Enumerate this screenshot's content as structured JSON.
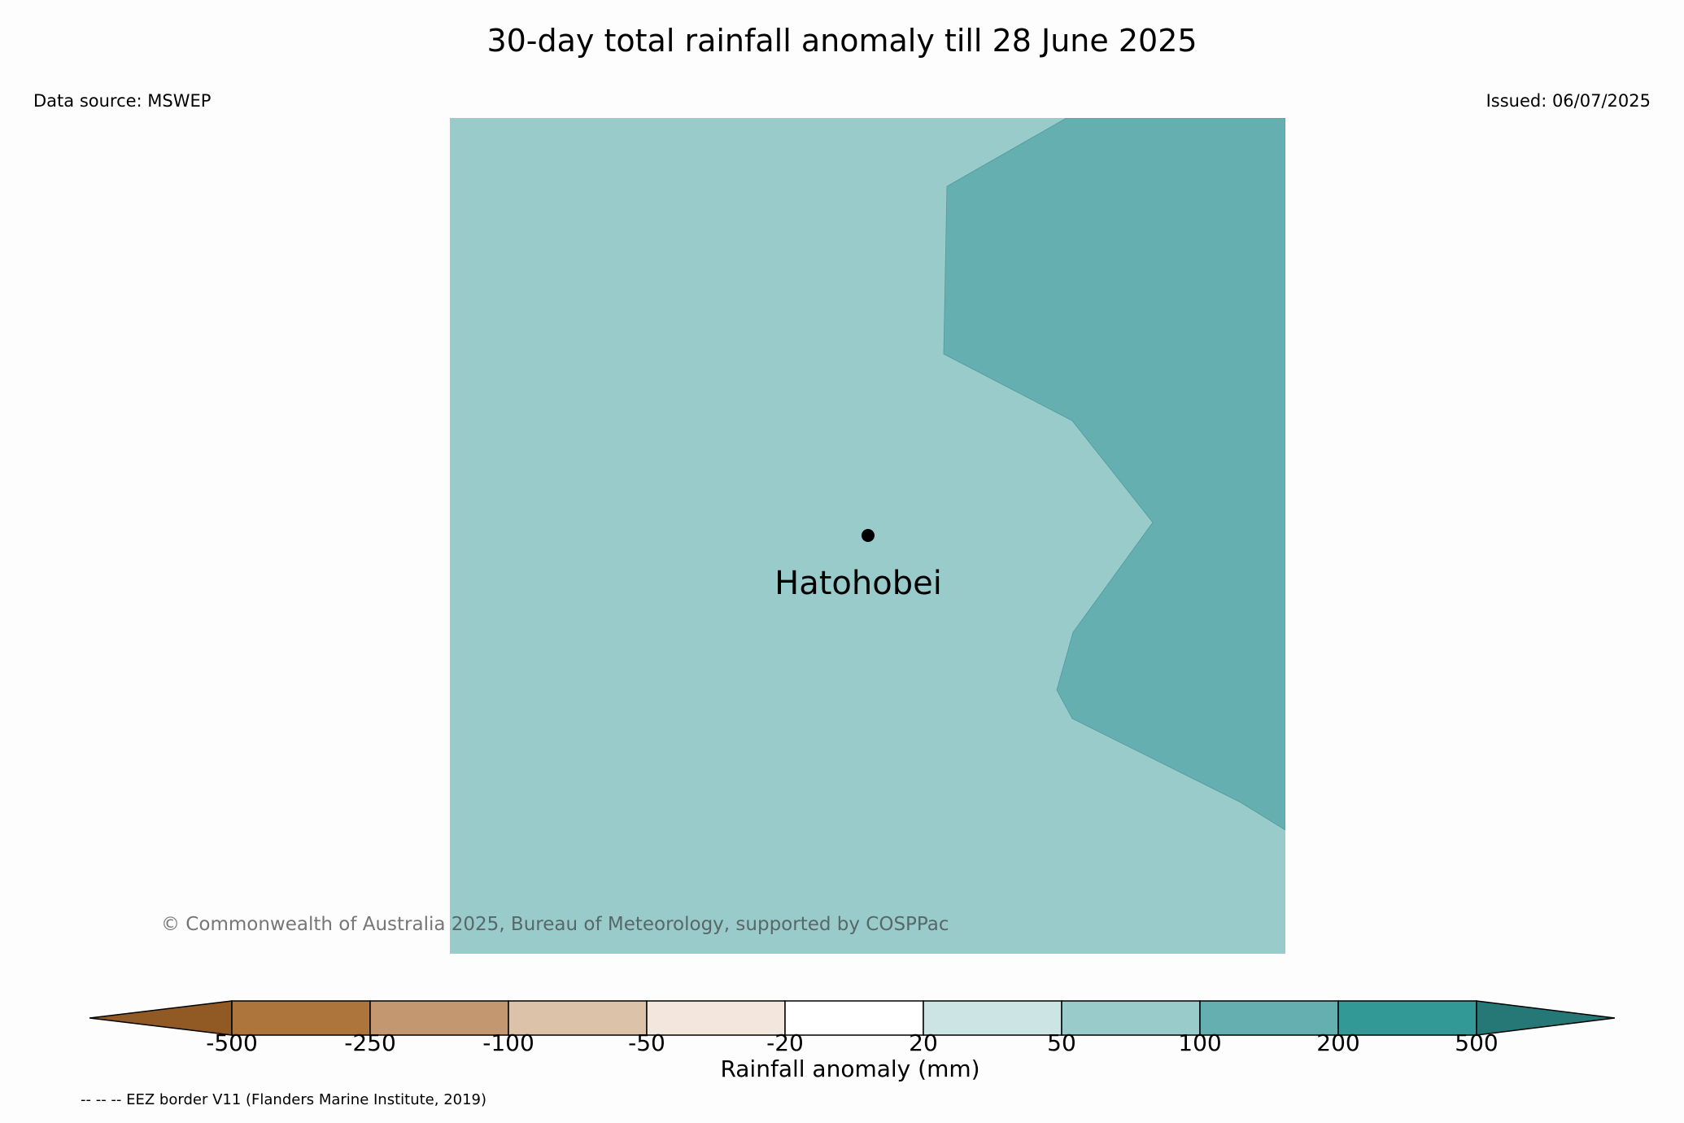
{
  "header": {
    "title": "30-day total rainfall anomaly till 28 June 2025",
    "data_source": "Data source: MSWEP",
    "issued": "Issued: 06/07/2025"
  },
  "map": {
    "place_name": "Hatohobei",
    "background_color": "#99cbcb",
    "anomaly_region_color": "#65afb1"
  },
  "copyright": "© Commonwealth of Australia 2025, Bureau of Meteorology, supported by COSPPac",
  "colorbar": {
    "label": "Rainfall anomaly (mm)",
    "ticks": [
      "-500",
      "-250",
      "-100",
      "-50",
      "-20",
      "20",
      "50",
      "100",
      "200",
      "500"
    ],
    "colors": [
      "#915a24",
      "#ad743b",
      "#c39870",
      "#dcc2a9",
      "#f3e6dd",
      "#ffffff",
      "#cce5e4",
      "#99cbcb",
      "#65afb1",
      "#339997",
      "#267877"
    ]
  },
  "footnote": "-- -- -- EEZ border V11 (Flanders Marine Institute, 2019)"
}
